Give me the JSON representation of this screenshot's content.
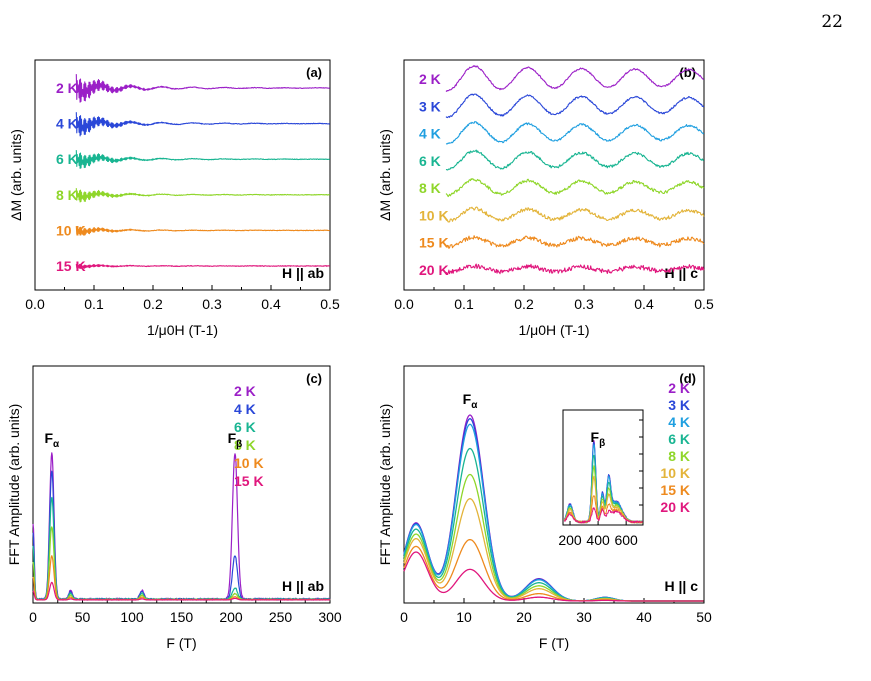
{
  "page_number": "22",
  "chart_data": [
    {
      "panel": "(a)",
      "type": "line",
      "field": "H || ab",
      "xlabel": "1/μ0H (T-1)",
      "ylabel": "ΔM (arb. units)",
      "xlim": [
        0,
        0.5
      ],
      "xticks": [
        "0.0",
        "0.1",
        "0.2",
        "0.3",
        "0.4",
        "0.5"
      ],
      "x_start": 0.07,
      "series": [
        {
          "name": "2 K",
          "color": "#9b1fc7",
          "amp": 1.0
        },
        {
          "name": "4 K",
          "color": "#2a47d8",
          "amp": 0.85
        },
        {
          "name": "6 K",
          "color": "#19b592",
          "amp": 0.65
        },
        {
          "name": "8 K",
          "color": "#8fd62a",
          "amp": 0.5
        },
        {
          "name": "10 K",
          "color": "#ee8a1e",
          "amp": 0.32
        },
        {
          "name": "15 K",
          "color": "#e0177d",
          "amp": 0.16
        }
      ]
    },
    {
      "panel": "(b)",
      "type": "line",
      "field": "H || c",
      "xlabel": "1/μ0H (T-1)",
      "ylabel": "ΔM (arb. units)",
      "xlim": [
        0,
        0.5
      ],
      "xticks": [
        "0.0",
        "0.1",
        "0.2",
        "0.3",
        "0.4",
        "0.5"
      ],
      "x_start": 0.07,
      "series": [
        {
          "name": "2 K",
          "color": "#9b1fc7",
          "amp": 1.0
        },
        {
          "name": "3 K",
          "color": "#2a47d8",
          "amp": 0.92
        },
        {
          "name": "4 K",
          "color": "#1f9fe0",
          "amp": 0.85
        },
        {
          "name": "6 K",
          "color": "#19b592",
          "amp": 0.75
        },
        {
          "name": "8 K",
          "color": "#8fd62a",
          "amp": 0.62
        },
        {
          "name": "10 K",
          "color": "#e3b43a",
          "amp": 0.5
        },
        {
          "name": "15 K",
          "color": "#ee8a1e",
          "amp": 0.38
        },
        {
          "name": "20 K",
          "color": "#e0177d",
          "amp": 0.25
        }
      ]
    },
    {
      "panel": "(c)",
      "type": "line",
      "field": "H || ab",
      "xlabel": "F (T)",
      "ylabel": "FFT Amplitude (arb. units)",
      "xlim": [
        0,
        300
      ],
      "xticks": [
        "0",
        "50",
        "100",
        "150",
        "200",
        "250",
        "300"
      ],
      "peak_labels": [
        {
          "text": "F",
          "sub": "α",
          "x": 19
        },
        {
          "text": "F",
          "sub": "β",
          "x": 204
        }
      ],
      "peaks": [
        {
          "f": 19,
          "w": 2.2
        },
        {
          "f": 204,
          "w": 2.6
        }
      ],
      "series": [
        {
          "name": "2 K",
          "color": "#9b1fc7",
          "amp_alpha": 1.0,
          "amp_beta": 1.0
        },
        {
          "name": "4 K",
          "color": "#2a47d8",
          "amp_alpha": 0.88,
          "amp_beta": 0.3
        },
        {
          "name": "6 K",
          "color": "#19b592",
          "amp_alpha": 0.7,
          "amp_beta": 0.08
        },
        {
          "name": "8 K",
          "color": "#8fd62a",
          "amp_alpha": 0.5,
          "amp_beta": 0.04
        },
        {
          "name": "10 K",
          "color": "#ee8a1e",
          "amp_alpha": 0.3,
          "amp_beta": 0.02
        },
        {
          "name": "15 K",
          "color": "#e0177d",
          "amp_alpha": 0.12,
          "amp_beta": 0.01
        }
      ]
    },
    {
      "panel": "(d)",
      "type": "line",
      "field": "H || c",
      "xlabel": "F (T)",
      "ylabel": "FFT Amplitude (arb. units)",
      "xlim": [
        0,
        50
      ],
      "xticks": [
        "0",
        "10",
        "20",
        "30",
        "40",
        "50"
      ],
      "peak_labels": [
        {
          "text": "F",
          "sub": "α",
          "x": 11
        }
      ],
      "peak_f": 11,
      "inset": {
        "xticks": [
          "200",
          "400",
          "600"
        ],
        "xlim": [
          150,
          720
        ],
        "peak_label": {
          "text": "F",
          "sub": "β",
          "x": 370
        }
      },
      "series": [
        {
          "name": "2 K",
          "color": "#9b1fc7",
          "amp": 1.0
        },
        {
          "name": "3 K",
          "color": "#2a47d8",
          "amp": 0.98
        },
        {
          "name": "4 K",
          "color": "#1f9fe0",
          "amp": 0.95
        },
        {
          "name": "6 K",
          "color": "#19b592",
          "amp": 0.82
        },
        {
          "name": "8 K",
          "color": "#8fd62a",
          "amp": 0.68
        },
        {
          "name": "10 K",
          "color": "#e3b43a",
          "amp": 0.55
        },
        {
          "name": "15 K",
          "color": "#ee8a1e",
          "amp": 0.33
        },
        {
          "name": "20 K",
          "color": "#e0177d",
          "amp": 0.17
        }
      ]
    }
  ]
}
